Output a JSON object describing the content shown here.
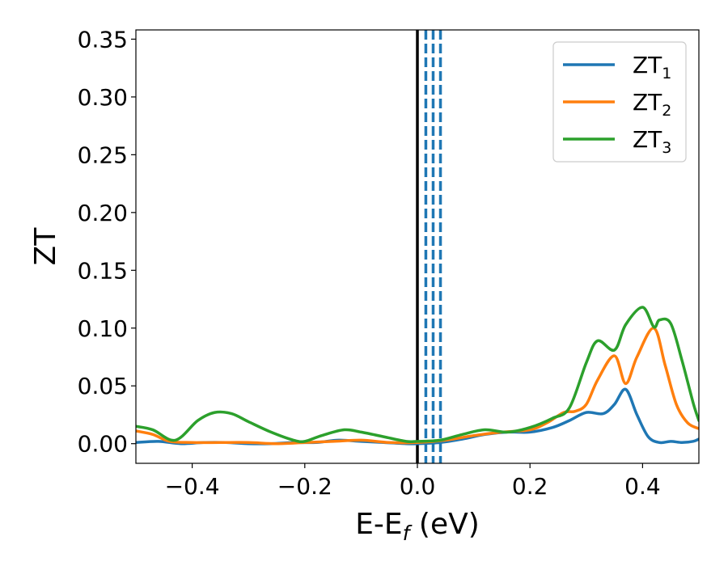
{
  "chart_data": {
    "type": "line",
    "title": "",
    "xlabel": {
      "main": "E-E",
      "sub": "f",
      "suffix": " (eV)"
    },
    "ylabel": "ZT",
    "xlim": [
      -0.5,
      0.5
    ],
    "ylim": [
      -0.017,
      0.358
    ],
    "xticks": [
      -0.4,
      -0.2,
      0.0,
      0.2,
      0.4
    ],
    "xtick_labels": [
      "−0.4",
      "−0.2",
      "0.0",
      "0.2",
      "0.4"
    ],
    "yticks": [
      0.0,
      0.05,
      0.1,
      0.15,
      0.2,
      0.25,
      0.3,
      0.35
    ],
    "ytick_labels": [
      "0.00",
      "0.05",
      "0.10",
      "0.15",
      "0.20",
      "0.25",
      "0.30",
      "0.35"
    ],
    "grid": false,
    "legend_position": "top-right",
    "vlines": [
      {
        "x": 0.0,
        "color": "#000000",
        "style": "solid"
      },
      {
        "x": 0.015,
        "color": "#1f77b4",
        "style": "dashed"
      },
      {
        "x": 0.028,
        "color": "#1f77b4",
        "style": "dashed"
      },
      {
        "x": 0.041,
        "color": "#1f77b4",
        "style": "dashed"
      }
    ],
    "series": [
      {
        "name": "ZT",
        "sub": "1",
        "color": "#1f77b4",
        "x": [
          -0.5,
          -0.46,
          -0.42,
          -0.38,
          -0.34,
          -0.3,
          -0.26,
          -0.22,
          -0.18,
          -0.14,
          -0.1,
          -0.06,
          -0.02,
          0.0,
          0.04,
          0.08,
          0.12,
          0.16,
          0.2,
          0.24,
          0.27,
          0.3,
          0.33,
          0.35,
          0.37,
          0.39,
          0.41,
          0.43,
          0.45,
          0.47,
          0.49,
          0.5
        ],
        "y": [
          0.001,
          0.002,
          0.0,
          0.001,
          0.001,
          0.0,
          0.0,
          0.001,
          0.001,
          0.003,
          0.002,
          0.001,
          0.0,
          0.0,
          0.001,
          0.004,
          0.008,
          0.01,
          0.01,
          0.014,
          0.02,
          0.027,
          0.026,
          0.034,
          0.047,
          0.025,
          0.006,
          0.001,
          0.002,
          0.001,
          0.002,
          0.004
        ]
      },
      {
        "name": "ZT",
        "sub": "2",
        "color": "#ff7f0e",
        "x": [
          -0.5,
          -0.47,
          -0.44,
          -0.4,
          -0.35,
          -0.3,
          -0.25,
          -0.2,
          -0.15,
          -0.1,
          -0.05,
          0.0,
          0.05,
          0.1,
          0.15,
          0.2,
          0.23,
          0.26,
          0.28,
          0.3,
          0.32,
          0.35,
          0.37,
          0.39,
          0.42,
          0.44,
          0.46,
          0.48,
          0.5
        ],
        "y": [
          0.011,
          0.008,
          0.002,
          0.001,
          0.001,
          0.001,
          0.0,
          0.001,
          0.002,
          0.003,
          0.001,
          0.001,
          0.003,
          0.007,
          0.01,
          0.012,
          0.018,
          0.027,
          0.028,
          0.034,
          0.055,
          0.076,
          0.052,
          0.075,
          0.1,
          0.068,
          0.034,
          0.018,
          0.013
        ]
      },
      {
        "name": "ZT",
        "sub": "3",
        "color": "#2ca02c",
        "x": [
          -0.5,
          -0.47,
          -0.43,
          -0.39,
          -0.36,
          -0.33,
          -0.3,
          -0.26,
          -0.22,
          -0.2,
          -0.17,
          -0.13,
          -0.1,
          -0.06,
          -0.02,
          0.0,
          0.04,
          0.08,
          0.12,
          0.16,
          0.2,
          0.24,
          0.27,
          0.3,
          0.32,
          0.35,
          0.37,
          0.4,
          0.42,
          0.43,
          0.45,
          0.47,
          0.49,
          0.5
        ],
        "y": [
          0.015,
          0.012,
          0.003,
          0.02,
          0.027,
          0.026,
          0.019,
          0.01,
          0.003,
          0.002,
          0.007,
          0.012,
          0.01,
          0.006,
          0.002,
          0.002,
          0.003,
          0.008,
          0.012,
          0.01,
          0.014,
          0.022,
          0.031,
          0.07,
          0.089,
          0.081,
          0.103,
          0.118,
          0.101,
          0.107,
          0.104,
          0.072,
          0.035,
          0.02
        ]
      }
    ]
  }
}
